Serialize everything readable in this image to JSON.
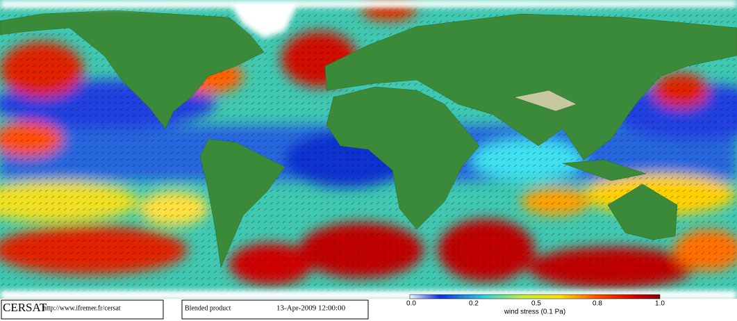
{
  "footer": {
    "logo": "CERSAT",
    "url": "http://www.ifremer.fr/cersat",
    "product": "Blended product",
    "datetime": "13-Apr-2009 12:00:00"
  },
  "colorbar": {
    "ticks": [
      "0.0",
      "0.2",
      "0.5",
      "0.8",
      "1.0"
    ],
    "label": "wind stress (0.1 Pa)"
  }
}
